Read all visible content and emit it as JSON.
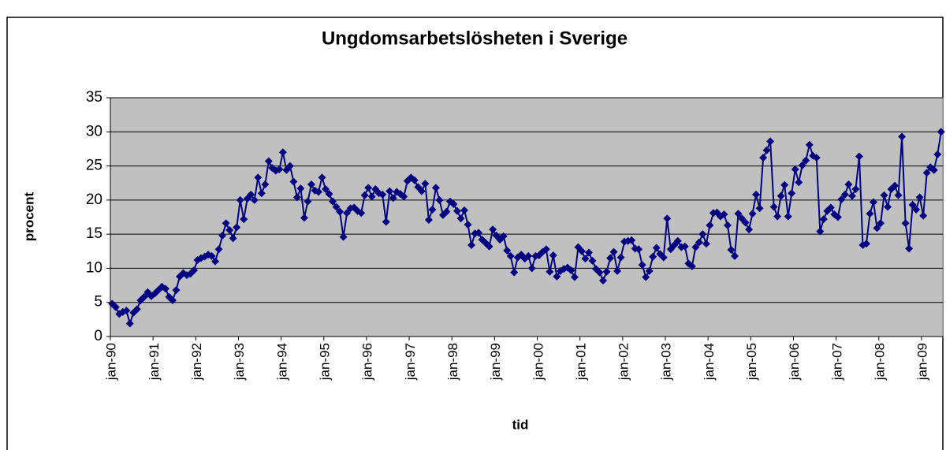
{
  "chart_data": {
    "type": "line",
    "title": "Ungdomsarbetslösheten i Sverige",
    "y_label": "procent",
    "x_label": "tid",
    "color": "#000080",
    "background": "#c0c0c0",
    "grid": true,
    "ylim": [
      0,
      35
    ],
    "yticks": [
      0,
      5,
      10,
      15,
      20,
      25,
      30,
      35
    ],
    "categories": [
      "jan-90",
      null,
      null,
      null,
      null,
      null,
      null,
      null,
      null,
      null,
      null,
      null,
      "jan-91",
      null,
      null,
      null,
      null,
      null,
      null,
      null,
      null,
      null,
      null,
      null,
      "jan-92",
      null,
      null,
      null,
      null,
      null,
      null,
      null,
      null,
      null,
      null,
      null,
      "jan-93",
      null,
      null,
      null,
      null,
      null,
      null,
      null,
      null,
      null,
      null,
      null,
      "jan-94",
      null,
      null,
      null,
      null,
      null,
      null,
      null,
      null,
      null,
      null,
      null,
      "jan-95",
      null,
      null,
      null,
      null,
      null,
      null,
      null,
      null,
      null,
      null,
      null,
      "jan-96",
      null,
      null,
      null,
      null,
      null,
      null,
      null,
      null,
      null,
      null,
      null,
      "jan-97",
      null,
      null,
      null,
      null,
      null,
      null,
      null,
      null,
      null,
      null,
      null,
      "jan-98",
      null,
      null,
      null,
      null,
      null,
      null,
      null,
      null,
      null,
      null,
      null,
      "jan-99",
      null,
      null,
      null,
      null,
      null,
      null,
      null,
      null,
      null,
      null,
      null,
      "jan-00",
      null,
      null,
      null,
      null,
      null,
      null,
      null,
      null,
      null,
      null,
      null,
      "jan-01",
      null,
      null,
      null,
      null,
      null,
      null,
      null,
      null,
      null,
      null,
      null,
      "jan-02",
      null,
      null,
      null,
      null,
      null,
      null,
      null,
      null,
      null,
      null,
      null,
      "jan-03",
      null,
      null,
      null,
      null,
      null,
      null,
      null,
      null,
      null,
      null,
      null,
      "jan-04",
      null,
      null,
      null,
      null,
      null,
      null,
      null,
      null,
      null,
      null,
      null,
      "jan-05",
      null,
      null,
      null,
      null,
      null,
      null,
      null,
      null,
      null,
      null,
      null,
      "jan-06",
      null,
      null,
      null,
      null,
      null,
      null,
      null,
      null,
      null,
      null,
      null,
      "jan-07",
      null,
      null,
      null,
      null,
      null,
      null,
      null,
      null,
      null,
      null,
      null,
      "jan-08",
      null,
      null,
      null,
      null,
      null,
      null,
      null,
      null,
      null,
      null,
      null,
      "jan-09",
      null,
      null,
      null,
      null,
      null
    ],
    "values": [
      4.8,
      4.3,
      3.3,
      3.6,
      3.8,
      1.9,
      3.5,
      4.0,
      5.3,
      5.8,
      6.5,
      5.9,
      6.3,
      6.8,
      7.3,
      7.0,
      5.8,
      5.3,
      6.8,
      8.8,
      9.3,
      9.0,
      9.2,
      9.7,
      11.2,
      11.5,
      11.7,
      12.0,
      11.8,
      11.0,
      12.8,
      14.8,
      16.6,
      15.6,
      14.4,
      16.0,
      20.0,
      17.2,
      20.2,
      20.8,
      20.0,
      23.3,
      21.0,
      22.3,
      25.7,
      24.7,
      24.3,
      24.5,
      27.0,
      24.4,
      25.0,
      22.7,
      20.4,
      21.7,
      17.4,
      19.8,
      22.3,
      21.4,
      21.2,
      23.3,
      21.6,
      20.9,
      19.8,
      19.0,
      18.3,
      14.6,
      18.1,
      18.8,
      18.9,
      18.4,
      18.1,
      20.7,
      21.8,
      20.5,
      21.6,
      21.0,
      20.8,
      16.8,
      21.3,
      20.3,
      21.2,
      20.9,
      20.5,
      22.8,
      23.3,
      22.9,
      21.9,
      21.3,
      22.4,
      17.1,
      18.6,
      21.8,
      20.0,
      17.8,
      18.3,
      19.8,
      19.4,
      18.4,
      17.3,
      18.5,
      16.4,
      13.4,
      15.1,
      15.2,
      14.2,
      13.7,
      13.2,
      15.7,
      14.8,
      14.2,
      14.7,
      12.6,
      11.8,
      9.4,
      11.6,
      12.0,
      11.4,
      11.8,
      10.0,
      11.8,
      11.9,
      12.4,
      12.8,
      9.5,
      11.9,
      8.8,
      9.6,
      9.9,
      10.1,
      9.7,
      8.7,
      13.1,
      12.5,
      11.4,
      12.3,
      11.1,
      9.9,
      9.4,
      8.2,
      9.5,
      11.5,
      12.4,
      9.6,
      11.6,
      13.9,
      14.0,
      14.1,
      12.9,
      12.8,
      10.5,
      8.7,
      9.6,
      11.7,
      13.0,
      12.1,
      11.6,
      17.3,
      12.8,
      13.4,
      14.0,
      13.1,
      13.2,
      10.7,
      10.3,
      13.1,
      13.8,
      15.0,
      13.6,
      16.3,
      18.1,
      18.2,
      17.6,
      17.9,
      16.3,
      12.7,
      11.8,
      18.0,
      17.3,
      16.7,
      15.7,
      18.0,
      20.8,
      18.8,
      26.2,
      27.3,
      28.6,
      19.0,
      17.6,
      20.6,
      22.2,
      17.6,
      21.0,
      24.5,
      22.6,
      25.1,
      25.8,
      28.1,
      26.5,
      26.2,
      15.4,
      17.2,
      18.4,
      18.9,
      17.9,
      17.5,
      20.1,
      20.8,
      22.3,
      20.6,
      21.6,
      26.4,
      13.4,
      13.6,
      18.0,
      19.7,
      15.9,
      16.6,
      20.7,
      19.0,
      21.6,
      22.1,
      20.7,
      29.3,
      16.6,
      12.9,
      19.3,
      18.6,
      20.4,
      17.7,
      24.0,
      24.8,
      24.4,
      26.7,
      30.0
    ]
  }
}
